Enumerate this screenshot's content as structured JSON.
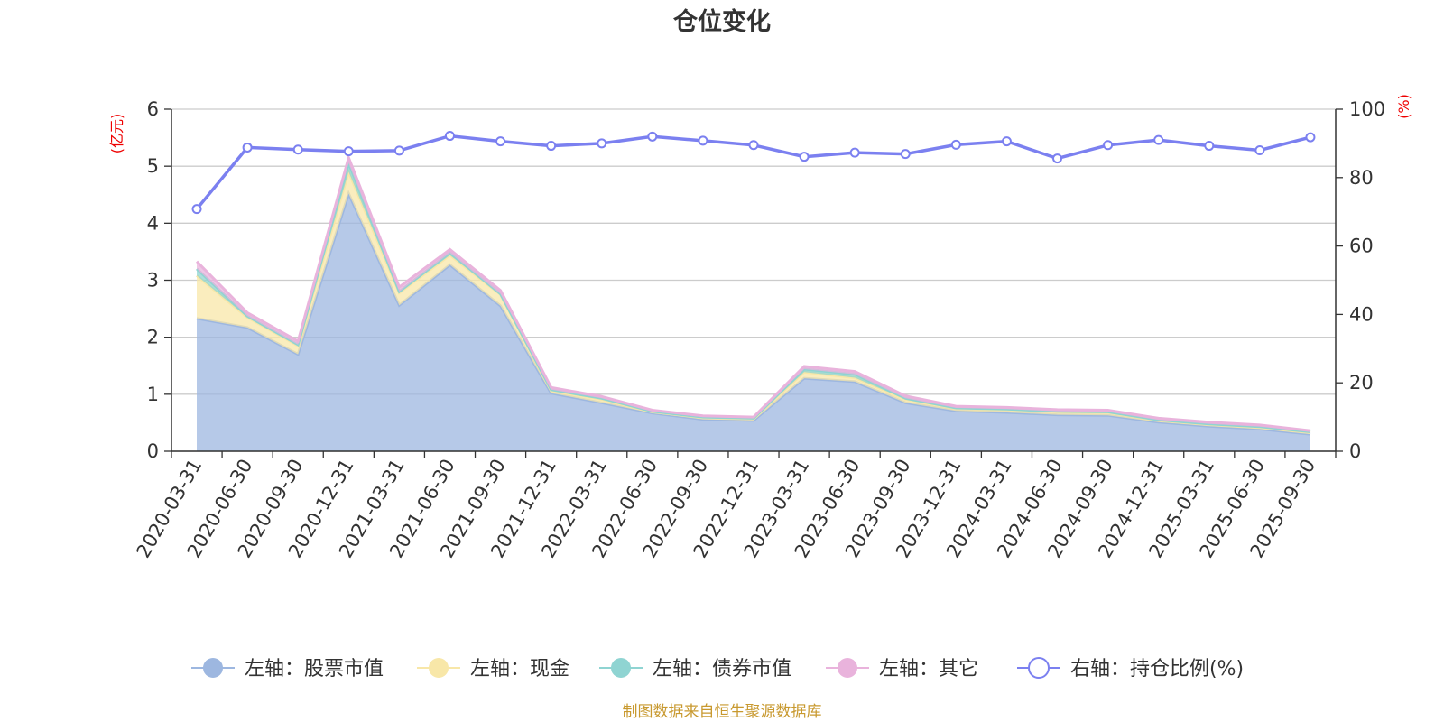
{
  "chart_data": {
    "type": "area",
    "title": "仓位变化",
    "left_axis_unit": "(亿元)",
    "right_axis_unit": "(%)",
    "ylim_left": [
      0,
      6
    ],
    "yticks_left": [
      "0",
      "1",
      "2",
      "3",
      "4",
      "5",
      "6"
    ],
    "ylim_right": [
      0,
      100
    ],
    "yticks_right": [
      "0",
      "20",
      "40",
      "60",
      "80",
      "100"
    ],
    "categories": [
      "2020-03-31",
      "2020-06-30",
      "2020-09-30",
      "2020-12-31",
      "2021-03-31",
      "2021-06-30",
      "2021-09-30",
      "2021-12-31",
      "2022-03-31",
      "2022-06-30",
      "2022-09-30",
      "2022-12-31",
      "2023-03-31",
      "2023-06-30",
      "2023-09-30",
      "2023-12-31",
      "2024-03-31",
      "2024-06-30",
      "2024-09-30",
      "2024-12-31",
      "2025-03-31",
      "2025-06-30",
      "2025-09-30"
    ],
    "series": [
      {
        "name": "左轴：股票市值",
        "axis": "left",
        "color": "#9db7e0",
        "values": [
          2.33,
          2.17,
          1.7,
          4.52,
          2.56,
          3.27,
          2.55,
          1.02,
          0.85,
          0.67,
          0.56,
          0.54,
          1.28,
          1.22,
          0.85,
          0.71,
          0.68,
          0.64,
          0.63,
          0.51,
          0.44,
          0.39,
          0.3
        ]
      },
      {
        "name": "左轴：现金",
        "axis": "left",
        "color": "#f8e7a8",
        "values": [
          0.75,
          0.18,
          0.15,
          0.38,
          0.22,
          0.17,
          0.2,
          0.04,
          0.06,
          0.02,
          0.03,
          0.03,
          0.11,
          0.07,
          0.06,
          0.04,
          0.05,
          0.05,
          0.05,
          0.03,
          0.03,
          0.03,
          0.03
        ]
      },
      {
        "name": "左轴：债券市值",
        "axis": "left",
        "color": "#8fd4d2",
        "values": [
          0.12,
          0.02,
          0.02,
          0.15,
          0.02,
          0.04,
          0.01,
          0.02,
          0.02,
          0.01,
          0.01,
          0.01,
          0.05,
          0.06,
          0.02,
          0.01,
          0.01,
          0.01,
          0.01,
          0.01,
          0.01,
          0.01,
          0.01
        ]
      },
      {
        "name": "左轴：其它",
        "axis": "left",
        "color": "#e9b3dc",
        "values": [
          0.13,
          0.06,
          0.06,
          0.1,
          0.08,
          0.06,
          0.06,
          0.04,
          0.03,
          0.02,
          0.02,
          0.02,
          0.05,
          0.05,
          0.04,
          0.03,
          0.03,
          0.03,
          0.03,
          0.03,
          0.03,
          0.03,
          0.02
        ]
      },
      {
        "name": "右轴：持仓比例(%)",
        "axis": "right",
        "color": "#7b80f0",
        "values": [
          70.8,
          88.8,
          88.2,
          87.7,
          87.9,
          92.2,
          90.6,
          89.3,
          90.0,
          92.0,
          90.8,
          89.5,
          86.1,
          87.3,
          86.9,
          89.6,
          90.6,
          85.6,
          89.5,
          91.0,
          89.3,
          88.0,
          91.8
        ]
      }
    ],
    "legend_position": "bottom",
    "grid": true
  },
  "source_note": "制图数据来自恒生聚源数据库"
}
